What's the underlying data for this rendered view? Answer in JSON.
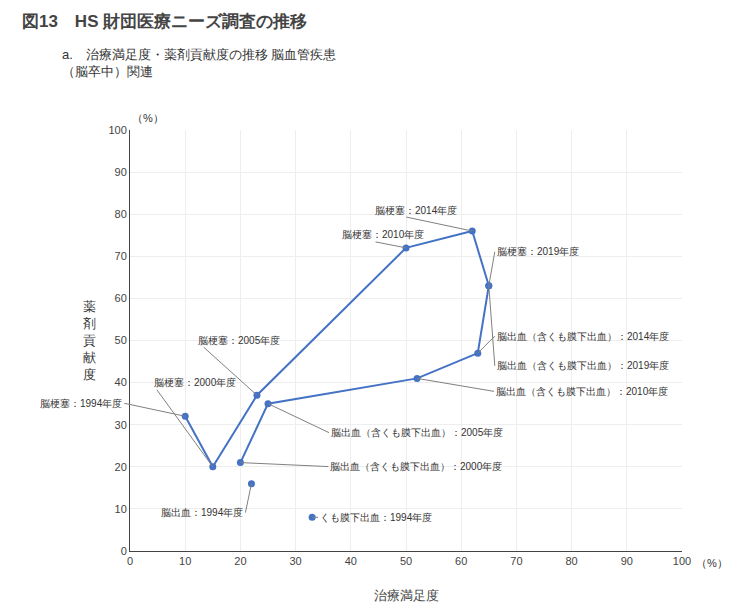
{
  "chart_data": {
    "type": "line",
    "title": "図13　HS 財団医療ニーズ調査の推移",
    "subtitle": [
      "a.　治療満足度・薬剤貢献度の推移 脳血管疾患",
      "（脳卒中）関連"
    ],
    "xlabel": "治療満足度",
    "ylabel": "薬\n剤\n貢\n献\n度",
    "xlabel_unit": "（%）",
    "ylabel_unit": "（%）",
    "xlim": [
      0,
      100
    ],
    "ylim": [
      0,
      100
    ],
    "xticks": [
      0,
      10,
      20,
      30,
      40,
      50,
      60,
      70,
      80,
      90,
      100
    ],
    "yticks": [
      0,
      10,
      20,
      30,
      40,
      50,
      60,
      70,
      80,
      90,
      100
    ],
    "grid": true,
    "marker": "circle",
    "series": [
      {
        "type": "line",
        "color": "#4472C4",
        "x": [
          10,
          15,
          23,
          50,
          62,
          65
        ],
        "values": [
          32,
          20,
          37,
          72,
          76,
          63
        ],
        "labels": [
          "脳梗塞：1994年度",
          "脳梗塞：2000年度",
          "脳梗塞：2005年度",
          "脳梗塞：2010年度",
          "脳梗塞：2014年度",
          "脳梗塞：2019年度"
        ]
      },
      {
        "type": "line",
        "color": "#4472C4",
        "x": [
          20,
          25,
          52,
          63,
          65
        ],
        "values": [
          21,
          35,
          41,
          47,
          63
        ],
        "labels": [
          "脳出血（含くも膜下出血）：2000年度",
          "脳出血（含くも膜下出血）：2005年度",
          "脳出血（含くも膜下出血）：2010年度",
          "脳出血（含くも膜下出血）：2014年度",
          "脳出血（含くも膜下出血）：2019年度"
        ]
      },
      {
        "type": "scatter",
        "color": "#4472C4",
        "x": [
          22
        ],
        "values": [
          16
        ],
        "labels": [
          "脳出血：1994年度"
        ]
      },
      {
        "type": "scatter",
        "color": "#4472C4",
        "x": [
          33
        ],
        "values": [
          8
        ],
        "labels": [
          "くも膜下出血：1994年度"
        ]
      }
    ]
  }
}
